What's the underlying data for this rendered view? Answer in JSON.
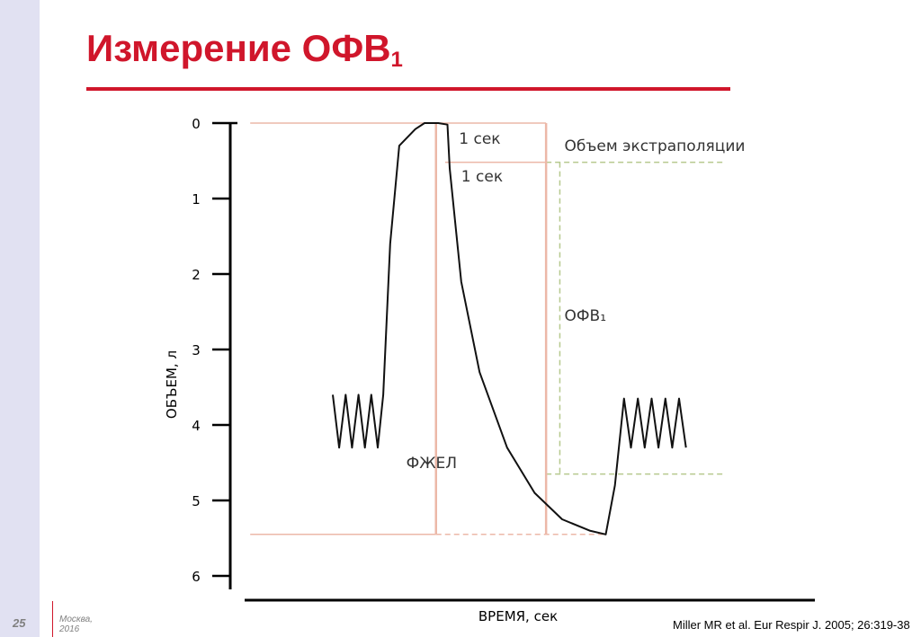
{
  "slide": {
    "title": "Измерение ОФВ",
    "title_subscript": "1",
    "page_number": "25",
    "footer_city": "Москва,",
    "footer_year": "2016",
    "citation": "Miller MR et al. Eur Respir J. 2005; 26:319-38"
  },
  "chart_data": {
    "type": "line",
    "title": "",
    "xlabel": "ВРЕМЯ, сек",
    "ylabel": "ОБЪЕМ, л",
    "ylim": [
      0,
      6
    ],
    "y_axis_inverted": true,
    "y_ticks": [
      0,
      1,
      2,
      3,
      4,
      5,
      6
    ],
    "x_ticks_shown": false,
    "grid": false,
    "series": [
      {
        "name": "",
        "color": "#111111",
        "points": [
          [
            0.0,
            3.6
          ],
          [
            0.14,
            4.3
          ],
          [
            0.28,
            3.6
          ],
          [
            0.42,
            4.3
          ],
          [
            0.56,
            3.6
          ],
          [
            0.7,
            4.3
          ],
          [
            0.84,
            3.6
          ],
          [
            0.98,
            4.3
          ],
          [
            1.1,
            3.6
          ],
          [
            1.25,
            1.6
          ],
          [
            1.45,
            0.3
          ],
          [
            1.8,
            0.08
          ],
          [
            2.0,
            0.0
          ],
          [
            2.3,
            0.0
          ],
          [
            2.5,
            0.02
          ],
          [
            2.55,
            0.6
          ],
          [
            2.8,
            2.1
          ],
          [
            3.2,
            3.3
          ],
          [
            3.8,
            4.3
          ],
          [
            4.4,
            4.9
          ],
          [
            5.0,
            5.25
          ],
          [
            5.6,
            5.4
          ],
          [
            5.95,
            5.45
          ],
          [
            6.15,
            4.8
          ],
          [
            6.35,
            3.65
          ],
          [
            6.5,
            4.3
          ],
          [
            6.65,
            3.65
          ],
          [
            6.8,
            4.3
          ],
          [
            6.95,
            3.65
          ],
          [
            7.1,
            4.3
          ],
          [
            7.25,
            3.65
          ],
          [
            7.4,
            4.3
          ],
          [
            7.55,
            3.65
          ],
          [
            7.7,
            4.3
          ]
        ]
      }
    ],
    "reference_lines": [
      {
        "kind": "horizontal",
        "y": 0.0,
        "x_from": -1.8,
        "x_to": 4.65,
        "color": "#ecb8a8",
        "style": "solid"
      },
      {
        "kind": "horizontal",
        "y": 0.52,
        "x_from": 4.65,
        "x_to": 8.5,
        "color": "#b6c98e",
        "style": "dashed"
      },
      {
        "kind": "horizontal",
        "y": 0.52,
        "x_from": 2.45,
        "x_to": 4.65,
        "color": "#ecb8a8",
        "style": "solid"
      },
      {
        "kind": "horizontal",
        "y": 4.65,
        "x_from": 4.65,
        "x_to": 8.5,
        "color": "#b6c98e",
        "style": "dashed"
      },
      {
        "kind": "horizontal",
        "y": 5.45,
        "x_from": -1.8,
        "x_to": 2.25,
        "color": "#ecb8a8",
        "style": "solid"
      },
      {
        "kind": "horizontal",
        "y": 5.45,
        "x_from": 2.25,
        "x_to": 5.95,
        "color": "#ecb8a8",
        "style": "dashed"
      },
      {
        "kind": "vertical",
        "x": 2.25,
        "y_from": 0.0,
        "y_to": 5.45,
        "color": "#ecb8a8",
        "style": "solid"
      },
      {
        "kind": "vertical",
        "x": 4.65,
        "y_from": 0.0,
        "y_to": 5.45,
        "color": "#ecb8a8",
        "style": "solid"
      },
      {
        "kind": "vertical",
        "x": 4.95,
        "y_from": 0.52,
        "y_to": 4.65,
        "color": "#b6c98e",
        "style": "dashed"
      }
    ],
    "annotations": [
      {
        "text": "1 сек",
        "x": 2.75,
        "y": 0.2
      },
      {
        "text": "Объем экстраполяции",
        "x": 5.05,
        "y": 0.3
      },
      {
        "text": "1 сек",
        "x": 2.8,
        "y": 0.7
      },
      {
        "text": "ОФВ₁",
        "x": 5.05,
        "y": 2.55
      },
      {
        "text": "ФЖЕЛ",
        "x": 1.6,
        "y": 4.5
      }
    ]
  }
}
